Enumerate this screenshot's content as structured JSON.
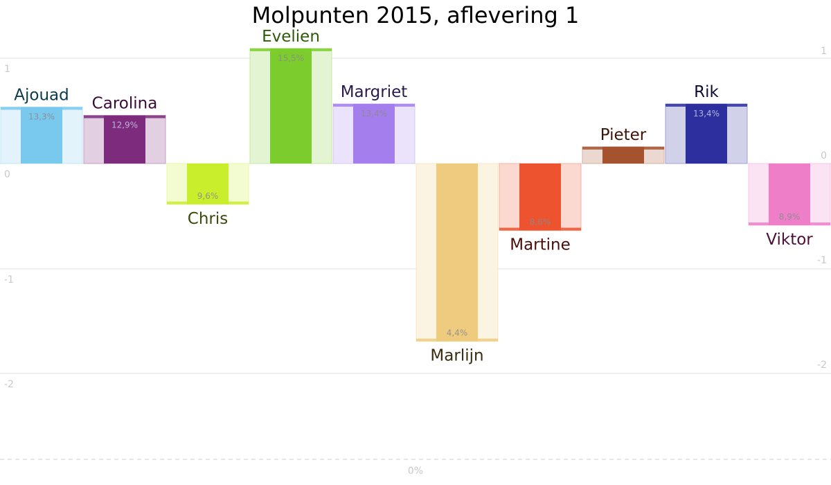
{
  "chart_data": {
    "type": "bar",
    "title": "Molpunten 2015, aflevering 1",
    "ylim": [
      -2.6,
      1.1
    ],
    "left_ticks": [
      "1",
      "0",
      "-1",
      "-2"
    ],
    "right_ticks": [
      "1",
      "0",
      "-1",
      "-2"
    ],
    "bottom_label": "0%",
    "grid": true,
    "categories": [
      "Ajouad",
      "Carolina",
      "Chris",
      "Evelien",
      "Margriet",
      "Marlijn",
      "Martine",
      "Pieter",
      "Rik",
      "Viktor"
    ],
    "values": [
      0.54,
      0.46,
      -0.39,
      1.1,
      0.57,
      -1.7,
      -0.64,
      0.16,
      0.57,
      -0.59
    ],
    "percentages": [
      "13,3%",
      "12,9%",
      "9,6%",
      "15,5%",
      "13,4%",
      "4,4%",
      "8,6%",
      "",
      "13,4%",
      "8,9%"
    ],
    "colors": [
      "#79c8ee",
      "#7d2b7c",
      "#c9ef2c",
      "#7dcc2d",
      "#a57eed",
      "#eecb7e",
      "#ee5330",
      "#a5522f",
      "#2d2f9f",
      "#ef7ec9"
    ],
    "label_colors": [
      "#0e3b4c",
      "#3a0b38",
      "#3b4a08",
      "#2c5a08",
      "#2a1a4c",
      "#3a2d0e",
      "#4a0e0a",
      "#3a1508",
      "#0b0c3a",
      "#4a1038"
    ]
  }
}
